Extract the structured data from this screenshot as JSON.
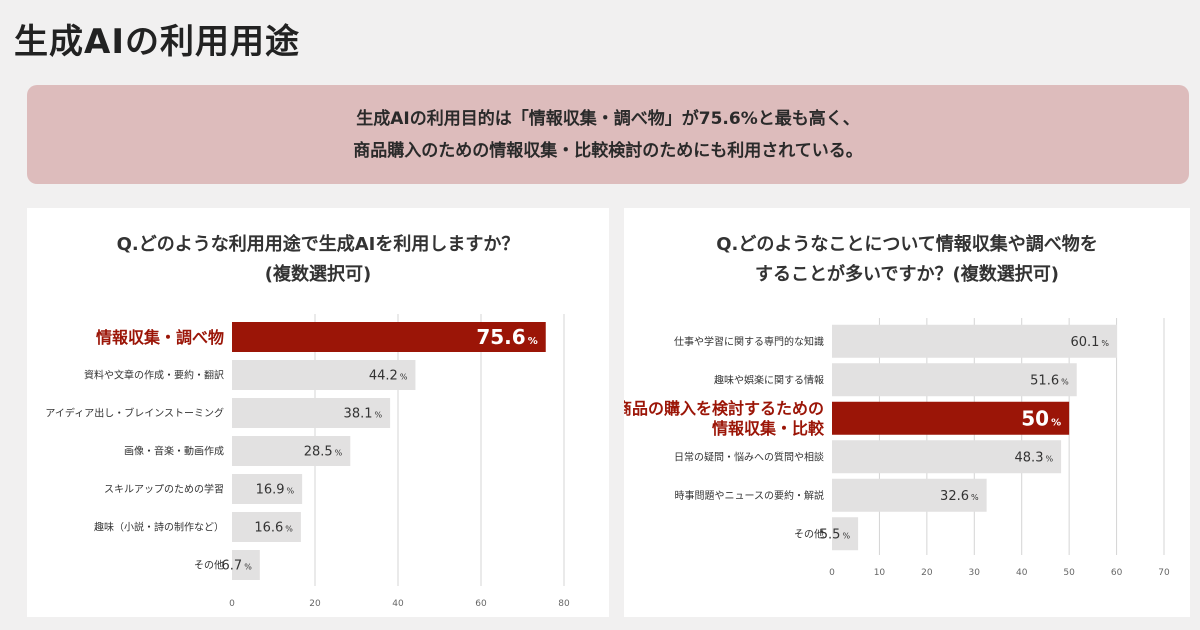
{
  "title": "生成AIの利用用途",
  "summary": {
    "line1": "生成AIの利用目的は「情報収集・調べ物」が75.6%と最も高く、",
    "line2": "商品購入のための情報収集・比較検討のためにも利用されている。"
  },
  "colors": {
    "highlight": "#9b1507",
    "bar": "#e2e1e1",
    "highlight_text": "#9b1507"
  },
  "chart_data": [
    {
      "type": "bar",
      "orientation": "horizontal",
      "question": [
        "Q.どのような利用用途で生成AIを利用しますか？",
        "(複数選択可)"
      ],
      "categories": [
        [
          "情報収集・調べ物"
        ],
        [
          "資料や文章の作成・要約・翻訳"
        ],
        [
          "アイディア出し・ブレインストーミング"
        ],
        [
          "画像・音楽・動画作成"
        ],
        [
          "スキルアップのための学習"
        ],
        [
          "趣味（小説・詩の制作など）"
        ],
        [
          "その他"
        ]
      ],
      "values": [
        75.6,
        44.2,
        38.1,
        28.5,
        16.9,
        16.6,
        6.7
      ],
      "value_labels": [
        "75.6",
        "44.2",
        "38.1",
        "28.5",
        "16.9",
        "16.6",
        "6.7"
      ],
      "unit": "%",
      "highlight_index": 0,
      "xlim": [
        0,
        80
      ],
      "xticks": [
        0,
        20,
        40,
        60,
        80
      ],
      "grid": true
    },
    {
      "type": "bar",
      "orientation": "horizontal",
      "question": [
        "Q.どのようなことについて情報収集や調べ物を",
        "することが多いですか？(複数選択可)"
      ],
      "categories": [
        [
          "仕事や学習に関する専門的な知識"
        ],
        [
          "趣味や娯楽に関する情報"
        ],
        [
          "商品の購入を検討するための",
          "情報収集・比較"
        ],
        [
          "日常の疑問・悩みへの質問や相談"
        ],
        [
          "時事問題やニュースの要約・解説"
        ],
        [
          "その他"
        ]
      ],
      "values": [
        60.1,
        51.6,
        50,
        48.3,
        32.6,
        5.5
      ],
      "value_labels": [
        "60.1",
        "51.6",
        "50",
        "48.3",
        "32.6",
        "5.5"
      ],
      "unit": "%",
      "highlight_index": 2,
      "xlim": [
        0,
        70
      ],
      "xticks": [
        0,
        10,
        20,
        30,
        40,
        50,
        60,
        70
      ],
      "grid": true
    }
  ]
}
